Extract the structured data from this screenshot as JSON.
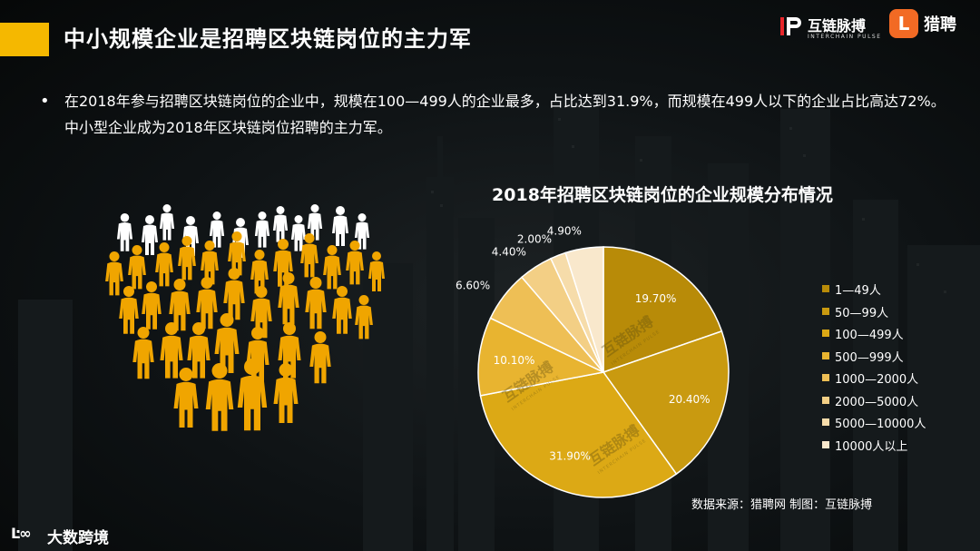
{
  "header": {
    "title": "中小规模企业是招聘区块链岗位的主力军",
    "logo_primary_cn": "互链脉搏",
    "logo_primary_en": "INTERCHAIN PULSE",
    "logo_secondary": "猎聘",
    "logo_secondary_mark": "L"
  },
  "body": {
    "bullet": "•",
    "description": "在2018年参与招聘区块链岗位的企业中，规模在100—499人的企业最多，占比达到31.9%，而规模在499人以下的企业占比高达72%。中小型企业成为2018年区块链岗位招聘的主力军。"
  },
  "chart_data": {
    "type": "pie",
    "title": "2018年招聘区块链岗位的企业规模分布情况",
    "categories": [
      "1—49人",
      "50—99人",
      "100—499人",
      "500—999人",
      "1000—2000人",
      "2000—5000人",
      "5000—10000人",
      "10000人以上"
    ],
    "values": [
      19.7,
      20.4,
      31.9,
      10.1,
      6.6,
      4.4,
      2.0,
      4.9
    ],
    "value_labels": [
      "19.70%",
      "20.40%",
      "31.90%",
      "10.10%",
      "6.60%",
      "4.40%",
      "2.00%",
      "4.90%"
    ],
    "colors": [
      "#b88b08",
      "#c99a10",
      "#dca915",
      "#e8b430",
      "#eebf55",
      "#f3cf85",
      "#f6dcaa",
      "#f9e8cc"
    ],
    "legend_position": "right",
    "watermark": "互链脉搏",
    "watermark_en": "INTERCHAIN PULSE"
  },
  "footer": {
    "source": "数据来源：猎聘网 制图：互链脉搏",
    "brand_mark": "Ŀ∞",
    "brand_text": "大数跨境"
  },
  "colors": {
    "accent": "#f5b800",
    "background": "#0e1214",
    "people_orange": "#f0a500",
    "people_white": "#ffffff"
  }
}
